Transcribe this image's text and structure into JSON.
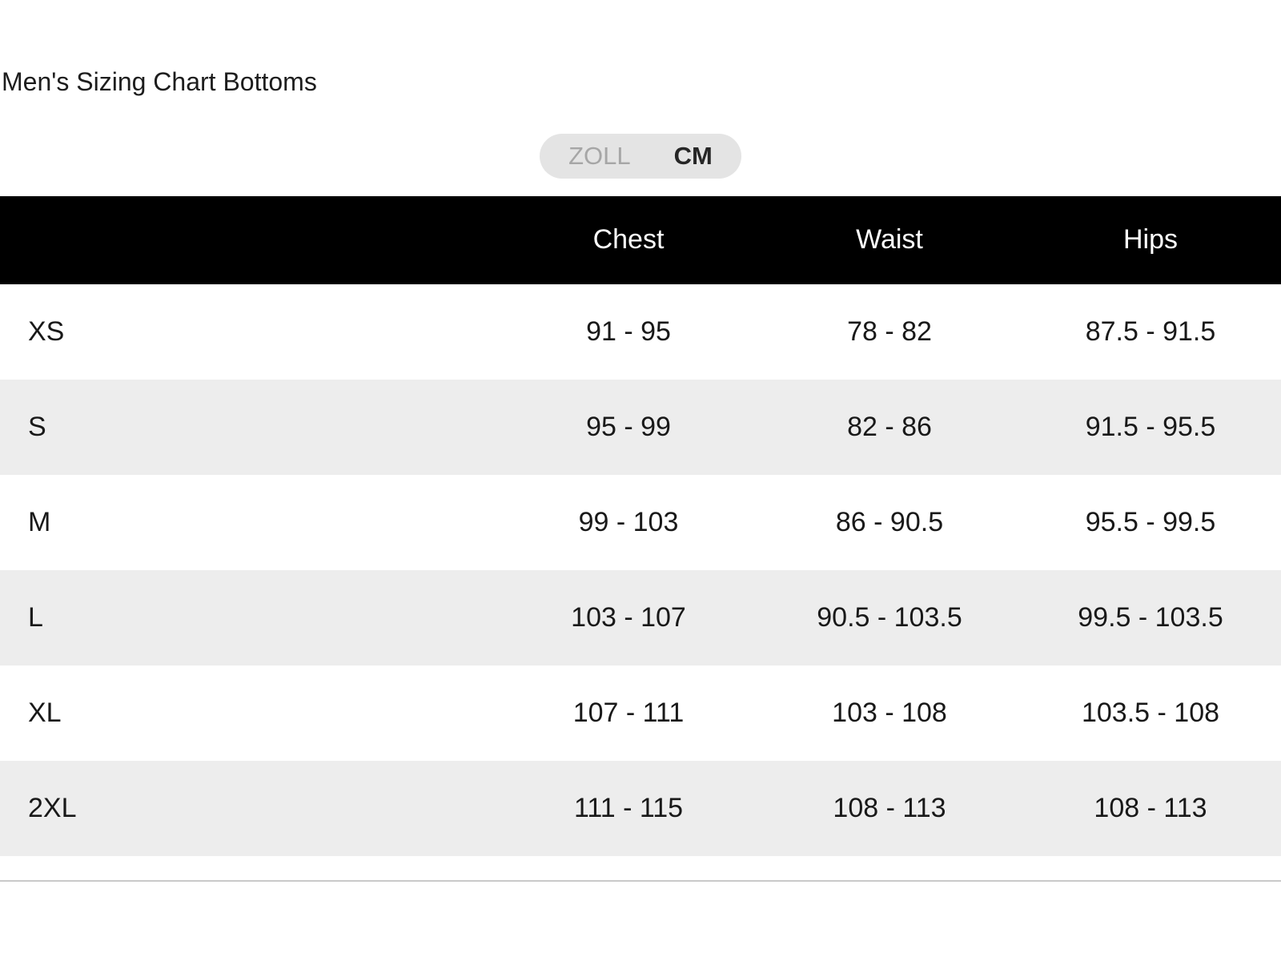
{
  "title": "Men's Sizing Chart Bottoms",
  "unit_toggle": {
    "options": [
      {
        "id": "zoll",
        "label": "ZOLL",
        "selected": false
      },
      {
        "id": "cm",
        "label": "CM",
        "selected": true
      }
    ]
  },
  "table": {
    "columns": {
      "size": "",
      "chest": "Chest",
      "waist": "Waist",
      "hips": "Hips"
    },
    "rows": [
      {
        "size": "XS",
        "chest": "91 - 95",
        "waist": "78 - 82",
        "hips": "87.5 - 91.5"
      },
      {
        "size": "S",
        "chest": "95 - 99",
        "waist": "82 - 86",
        "hips": "91.5 - 95.5"
      },
      {
        "size": "M",
        "chest": "99 - 103",
        "waist": "86 - 90.5",
        "hips": "95.5 - 99.5"
      },
      {
        "size": "L",
        "chest": "103 - 107",
        "waist": "90.5 - 103.5",
        "hips": "99.5 - 103.5"
      },
      {
        "size": "XL",
        "chest": "107 - 111",
        "waist": "103 - 108",
        "hips": "103.5 - 108"
      },
      {
        "size": "2XL",
        "chest": "111 - 115",
        "waist": "108 - 113",
        "hips": "108 - 113"
      }
    ]
  },
  "colors": {
    "header_bg": "#000000",
    "header_text": "#ffffff",
    "row_alt_bg": "#ededed",
    "body_text": "#191919",
    "toggle_bg": "#e4e4e4",
    "toggle_unselected_text": "#a6a6a6",
    "toggle_selected_text": "#262626",
    "divider": "#c9c9c9"
  }
}
